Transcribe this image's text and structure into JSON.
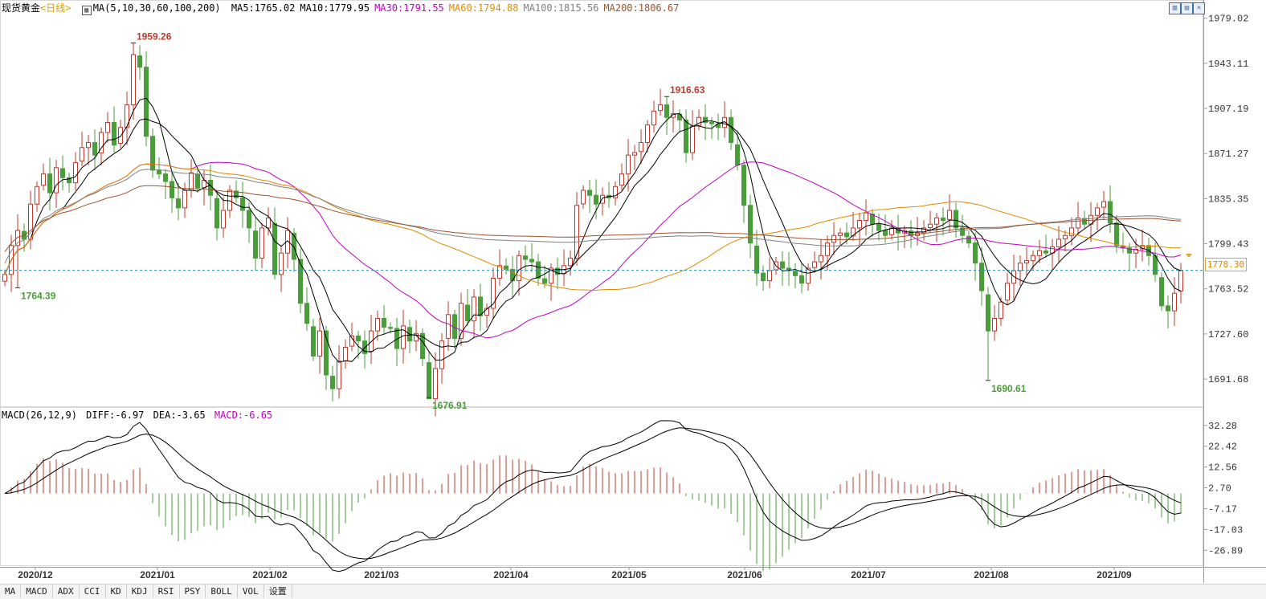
{
  "header": {
    "instrument": "现货黄金",
    "period": "<日线>",
    "ma_label": "MA(5,10,30,60,100,200)",
    "ma_values": [
      {
        "label": "MA5:1765.02",
        "color": "#000000"
      },
      {
        "label": "MA10:1779.95",
        "color": "#000000"
      },
      {
        "label": "MA30:1791.55",
        "color": "#c000c0"
      },
      {
        "label": "MA60:1794.88",
        "color": "#e08a00"
      },
      {
        "label": "MA100:1815.56",
        "color": "#808080"
      },
      {
        "label": "MA200:1806.67",
        "color": "#a0522d"
      }
    ]
  },
  "macd_header": {
    "label": "MACD(26,12,9)",
    "diff": "DIFF:-6.97",
    "dea": "DEA:-3.65",
    "macd": "MACD:-6.65"
  },
  "current_price": "1778.30",
  "tabs": [
    "MA",
    "MACD",
    "ADX",
    "CCI",
    "KD",
    "KDJ",
    "RSI",
    "PSY",
    "BOLL",
    "VOL",
    "设置"
  ],
  "toolbar_icons": [
    "panel-icon",
    "split-icon",
    "close-icon"
  ],
  "chart_data": [
    {
      "type": "candlestick",
      "title": "现货黄金 日线",
      "price_axis_ticks": [
        "1979.02",
        "1943.11",
        "1907.19",
        "1871.27",
        "1835.35",
        "1799.43",
        "1763.52",
        "1727.60",
        "1691.68"
      ],
      "date_ticks": [
        "2020/12",
        "2021/01",
        "2021/02",
        "2021/03",
        "2021/04",
        "2021/05",
        "2021/06",
        "2021/07",
        "2021/08",
        "2021/09"
      ],
      "annotations": [
        {
          "text": "1959.26",
          "kind": "high",
          "color": "#c0392b"
        },
        {
          "text": "1916.63",
          "kind": "high",
          "color": "#c0392b"
        },
        {
          "text": "1764.39",
          "kind": "low",
          "color": "#4a9e3a"
        },
        {
          "text": "1676.91",
          "kind": "low",
          "color": "#4a9e3a"
        },
        {
          "text": "1690.61",
          "kind": "low",
          "color": "#4a9e3a"
        }
      ],
      "closes": [
        1775,
        1798,
        1810,
        1803,
        1831,
        1845,
        1855,
        1840,
        1860,
        1852,
        1848,
        1864,
        1876,
        1880,
        1870,
        1888,
        1896,
        1878,
        1892,
        1910,
        1950,
        1940,
        1885,
        1858,
        1855,
        1849,
        1836,
        1828,
        1842,
        1856,
        1844,
        1850,
        1838,
        1812,
        1826,
        1842,
        1836,
        1826,
        1812,
        1788,
        1812,
        1820,
        1775,
        1792,
        1810,
        1787,
        1752,
        1736,
        1710,
        1730,
        1695,
        1684,
        1706,
        1717,
        1726,
        1722,
        1712,
        1730,
        1740,
        1733,
        1732,
        1716,
        1734,
        1722,
        1728,
        1708,
        1676,
        1700,
        1722,
        1743,
        1724,
        1752,
        1738,
        1757,
        1742,
        1748,
        1772,
        1782,
        1779,
        1770,
        1790,
        1787,
        1785,
        1772,
        1768,
        1780,
        1775,
        1782,
        1788,
        1830,
        1842,
        1838,
        1831,
        1838,
        1836,
        1845,
        1855,
        1870,
        1872,
        1880,
        1894,
        1905,
        1910,
        1900,
        1903,
        1898,
        1872,
        1893,
        1900,
        1896,
        1895,
        1892,
        1900,
        1880,
        1862,
        1830,
        1800,
        1776,
        1770,
        1778,
        1785,
        1780,
        1778,
        1774,
        1768,
        1780,
        1785,
        1790,
        1800,
        1806,
        1808,
        1805,
        1812,
        1818,
        1824,
        1815,
        1810,
        1806,
        1812,
        1808,
        1810,
        1806,
        1808,
        1812,
        1815,
        1820,
        1818,
        1826,
        1812,
        1806,
        1800,
        1784,
        1762,
        1730,
        1740,
        1753,
        1768,
        1778,
        1784,
        1786,
        1790,
        1794,
        1792,
        1797,
        1803,
        1806,
        1812,
        1820,
        1815,
        1822,
        1828,
        1833,
        1816,
        1798,
        1796,
        1792,
        1795,
        1798,
        1790,
        1775,
        1750,
        1746,
        1760,
        1778
      ],
      "ma_series": [
        {
          "name": "MA5",
          "color": "#000000",
          "period": 5
        },
        {
          "name": "MA10",
          "color": "#000000",
          "period": 10
        },
        {
          "name": "MA30",
          "color": "#c000c0",
          "period": 30
        },
        {
          "name": "MA60",
          "color": "#e08a00",
          "period": 60
        },
        {
          "name": "MA100",
          "color": "#808080",
          "period": 100
        },
        {
          "name": "MA200",
          "color": "#a0522d",
          "period": 200
        }
      ],
      "last_price": 1778.3,
      "up_color": "#c0392b",
      "down_color": "#4a9e3a"
    },
    {
      "type": "bar+line",
      "title": "MACD(26,12,9)",
      "axis_ticks": [
        "32.28",
        "22.42",
        "12.56",
        "2.70",
        "-7.17",
        "-17.03",
        "-26.89"
      ],
      "series": [
        {
          "name": "DIFF",
          "color": "#000000"
        },
        {
          "name": "DEA",
          "color": "#000000"
        },
        {
          "name": "MACD",
          "color": "#c000c0"
        }
      ]
    }
  ]
}
